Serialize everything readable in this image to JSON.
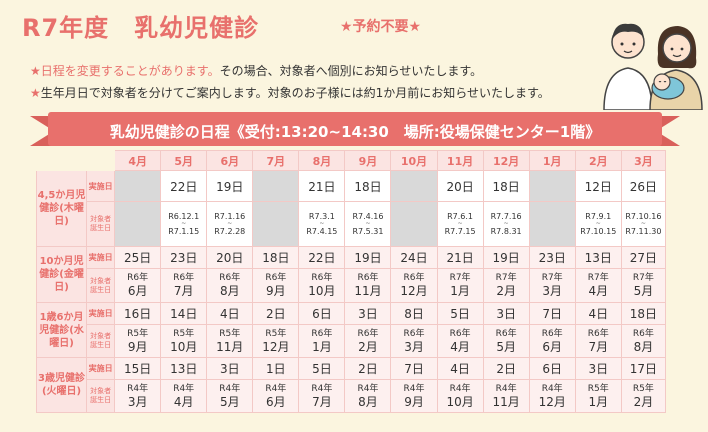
{
  "header": {
    "title": "R7年度　乳幼児健診",
    "no_reservation": "★予約不要★"
  },
  "notes": [
    {
      "star": "★",
      "highlight": "日程を変更することがあります。",
      "text": "その場合、対象者へ個別にお知らせいたします。"
    },
    {
      "star": "★",
      "highlight": "",
      "text": "生年月日で対象者を分けてご案内します。対象のお子様には約1か月前にお知らせいたします。"
    }
  ],
  "banner": {
    "text": "乳幼児健診の日程《受付:13:20~14:30　場所:役場保健センター1階》"
  },
  "colors": {
    "accent": "#e8706c",
    "background": "#fbf5df",
    "header_fill": "#fbe4e2",
    "inactive": "#d9d9d9"
  },
  "months": [
    "4月",
    "5月",
    "6月",
    "7月",
    "8月",
    "9月",
    "10月",
    "11月",
    "12月",
    "1月",
    "2月",
    "3月"
  ],
  "labels": {
    "date": "実施日",
    "target": "対象者誕生日"
  },
  "groups": [
    {
      "name": "4,5か月児健診(木曜日)",
      "dates": [
        "",
        "22日",
        "19日",
        "",
        "21日",
        "18日",
        "",
        "20日",
        "18日",
        "",
        "12日",
        "26日"
      ],
      "targets": [
        null,
        {
          "from": "R6.12.1",
          "to": "R7.1.15"
        },
        {
          "from": "R7.1.16",
          "to": "R7.2.28"
        },
        null,
        {
          "from": "R7.3.1",
          "to": "R7.4.15"
        },
        {
          "from": "R7.4.16",
          "to": "R7.5.31"
        },
        null,
        {
          "from": "R7.6.1",
          "to": "R7.7.15"
        },
        {
          "from": "R7.7.16",
          "to": "R7.8.31"
        },
        null,
        {
          "from": "R7.9.1",
          "to": "R7.10.15"
        },
        {
          "from": "R7.10.16",
          "to": "R7.11.30"
        }
      ]
    },
    {
      "name": "10か月児健診(金曜日)",
      "dates": [
        "25日",
        "23日",
        "20日",
        "18日",
        "22日",
        "19日",
        "24日",
        "21日",
        "19日",
        "23日",
        "13日",
        "27日"
      ],
      "targets": [
        {
          "year": "R6年",
          "month": "6月"
        },
        {
          "year": "R6年",
          "month": "7月"
        },
        {
          "year": "R6年",
          "month": "8月"
        },
        {
          "year": "R6年",
          "month": "9月"
        },
        {
          "year": "R6年",
          "month": "10月"
        },
        {
          "year": "R6年",
          "month": "11月"
        },
        {
          "year": "R6年",
          "month": "12月"
        },
        {
          "year": "R7年",
          "month": "1月"
        },
        {
          "year": "R7年",
          "month": "2月"
        },
        {
          "year": "R7年",
          "month": "3月"
        },
        {
          "year": "R7年",
          "month": "4月"
        },
        {
          "year": "R7年",
          "month": "5月"
        }
      ]
    },
    {
      "name": "1歳6か月児健診(水曜日)",
      "dates": [
        "16日",
        "14日",
        "4日",
        "2日",
        "6日",
        "3日",
        "8日",
        "5日",
        "3日",
        "7日",
        "4日",
        "18日"
      ],
      "targets": [
        {
          "year": "R5年",
          "month": "9月"
        },
        {
          "year": "R5年",
          "month": "10月"
        },
        {
          "year": "R5年",
          "month": "11月"
        },
        {
          "year": "R5年",
          "month": "12月"
        },
        {
          "year": "R6年",
          "month": "1月"
        },
        {
          "year": "R6年",
          "month": "2月"
        },
        {
          "year": "R6年",
          "month": "3月"
        },
        {
          "year": "R6年",
          "month": "4月"
        },
        {
          "year": "R6年",
          "month": "5月"
        },
        {
          "year": "R6年",
          "month": "6月"
        },
        {
          "year": "R6年",
          "month": "7月"
        },
        {
          "year": "R6年",
          "month": "8月"
        }
      ]
    },
    {
      "name": "3歳児健診(火曜日)",
      "dates": [
        "15日",
        "13日",
        "3日",
        "1日",
        "5日",
        "2日",
        "7日",
        "4日",
        "2日",
        "6日",
        "3日",
        "17日"
      ],
      "targets": [
        {
          "year": "R4年",
          "month": "3月"
        },
        {
          "year": "R4年",
          "month": "4月"
        },
        {
          "year": "R4年",
          "month": "5月"
        },
        {
          "year": "R4年",
          "month": "6月"
        },
        {
          "year": "R4年",
          "month": "7月"
        },
        {
          "year": "R4年",
          "month": "8月"
        },
        {
          "year": "R4年",
          "month": "9月"
        },
        {
          "year": "R4年",
          "month": "10月"
        },
        {
          "year": "R4年",
          "month": "11月"
        },
        {
          "year": "R4年",
          "month": "12月"
        },
        {
          "year": "R5年",
          "month": "1月"
        },
        {
          "year": "R5年",
          "month": "2月"
        }
      ]
    }
  ],
  "illustration": "family-icon"
}
